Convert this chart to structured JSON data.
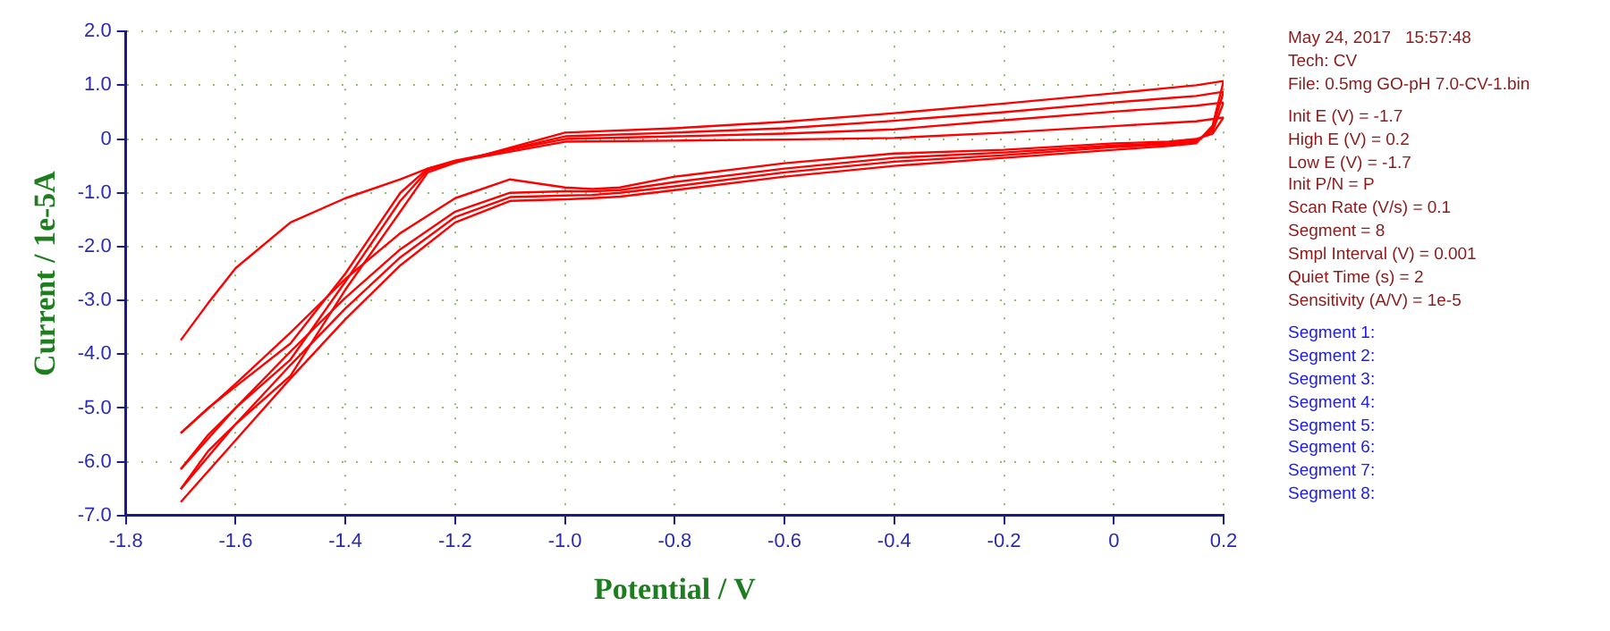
{
  "chart_data": {
    "type": "line",
    "xlabel": "Potential / V",
    "ylabel": "Current / 1e-5A",
    "xlim": [
      -1.8,
      0.2
    ],
    "ylim": [
      -7,
      2
    ],
    "xticks": [
      -1.8,
      -1.6,
      -1.4,
      -1.2,
      {
        "value": -1,
        "label": "-1.0"
      },
      -0.8,
      -0.6,
      -0.4,
      -0.2,
      0,
      0.2
    ],
    "yticks": [
      {
        "value": 2,
        "label": "2.0"
      },
      {
        "value": 1,
        "label": "1.0"
      },
      0,
      {
        "value": -1,
        "label": "-1.0"
      },
      {
        "value": -2,
        "label": "-2.0"
      },
      {
        "value": -3,
        "label": "-3.0"
      },
      {
        "value": -4,
        "label": "-4.0"
      },
      {
        "value": -5,
        "label": "-5.0"
      },
      {
        "value": -6,
        "label": "-6.0"
      },
      {
        "value": -7,
        "label": "-7.0"
      }
    ],
    "grid": true,
    "marker": "none",
    "line_style": "solid",
    "legend": false,
    "series": [
      {
        "color": "#ff0000",
        "x": [
          -1.7,
          -1.65,
          -1.6,
          -1.5,
          -1.4,
          -1.3,
          -1.25,
          -1.2,
          -1.0,
          -0.8,
          -0.6,
          -0.4,
          -0.2,
          0,
          0.1,
          0.15,
          0.2
        ],
        "values": [
          -3.74,
          -3.05,
          -2.4,
          -1.55,
          -1.1,
          -0.75,
          -0.55,
          -0.42,
          -0.05,
          -0.03,
          -0.01,
          0.02,
          0.12,
          0.24,
          0.3,
          0.33,
          0.4
        ]
      },
      {
        "color": "#ff0000",
        "x": [
          0.2,
          0.18,
          0.15,
          0.1,
          0,
          -0.2,
          -0.4,
          -0.6,
          -0.8,
          -0.9,
          -0.95,
          -1.0,
          -1.1,
          -1.2,
          -1.3,
          -1.4,
          -1.5,
          -1.6,
          -1.7
        ],
        "values": [
          0.4,
          0.1,
          0.0,
          -0.05,
          -0.08,
          -0.2,
          -0.27,
          -0.45,
          -0.7,
          -0.9,
          -0.93,
          -0.9,
          -0.75,
          -1.1,
          -1.75,
          -2.6,
          -3.6,
          -4.55,
          -5.47
        ]
      },
      {
        "color": "#ff0000",
        "x": [
          -1.7,
          -1.65,
          -1.6,
          -1.5,
          -1.4,
          -1.3,
          -1.25,
          -1.2,
          -1.0,
          -0.8,
          -0.6,
          -0.4,
          -0.2,
          0,
          0.1,
          0.15,
          0.2
        ],
        "values": [
          -5.47,
          -5.0,
          -4.6,
          -3.8,
          -2.5,
          -1.0,
          -0.55,
          -0.4,
          0.0,
          0.05,
          0.1,
          0.18,
          0.35,
          0.51,
          0.58,
          0.62,
          0.68
        ]
      },
      {
        "color": "#ff0000",
        "x": [
          0.2,
          0.18,
          0.15,
          0.1,
          0,
          -0.2,
          -0.4,
          -0.6,
          -0.8,
          -0.9,
          -0.95,
          -1.0,
          -1.1,
          -1.2,
          -1.3,
          -1.4,
          -1.5,
          -1.6,
          -1.7
        ],
        "values": [
          0.68,
          0.15,
          -0.03,
          -0.08,
          -0.12,
          -0.25,
          -0.35,
          -0.55,
          -0.8,
          -0.95,
          -0.97,
          -0.97,
          -1.0,
          -1.35,
          -2.05,
          -2.95,
          -3.95,
          -5.0,
          -6.14
        ]
      },
      {
        "color": "#ff0000",
        "x": [
          -1.7,
          -1.65,
          -1.6,
          -1.5,
          -1.4,
          -1.3,
          -1.25,
          -1.2,
          -1.0,
          -0.8,
          -0.6,
          -0.4,
          -0.2,
          0,
          0.1,
          0.15,
          0.2
        ],
        "values": [
          -6.14,
          -5.5,
          -5.0,
          -4.1,
          -2.65,
          -1.15,
          -0.58,
          -0.42,
          0.05,
          0.12,
          0.2,
          0.34,
          0.5,
          0.68,
          0.76,
          0.8,
          0.88
        ]
      },
      {
        "color": "#ff0000",
        "x": [
          0.2,
          0.18,
          0.15,
          0.1,
          0,
          -0.2,
          -0.4,
          -0.6,
          -0.8,
          -0.9,
          -0.95,
          -1.0,
          -1.1,
          -1.2,
          -1.3,
          -1.4,
          -1.5,
          -1.6,
          -1.7
        ],
        "values": [
          0.88,
          0.2,
          -0.05,
          -0.1,
          -0.15,
          -0.3,
          -0.42,
          -0.62,
          -0.88,
          -1.0,
          -1.04,
          -1.05,
          -1.08,
          -1.45,
          -2.2,
          -3.15,
          -4.2,
          -5.3,
          -6.51
        ]
      },
      {
        "color": "#ff0000",
        "x": [
          -1.7,
          -1.65,
          -1.6,
          -1.5,
          -1.4,
          -1.3,
          -1.25,
          -1.2,
          -1.0,
          -0.8,
          -0.6,
          -0.4,
          -0.2,
          0,
          0.1,
          0.15,
          0.2
        ],
        "values": [
          -6.51,
          -5.8,
          -5.3,
          -4.4,
          -2.8,
          -1.35,
          -0.62,
          -0.44,
          0.12,
          0.2,
          0.32,
          0.48,
          0.66,
          0.85,
          0.95,
          1.0,
          1.08
        ]
      },
      {
        "color": "#ff0000",
        "x": [
          0.2,
          0.18,
          0.15,
          0.1,
          0,
          -0.2,
          -0.4,
          -0.6,
          -0.8,
          -0.9,
          -0.95,
          -1.0,
          -1.1,
          -1.2,
          -1.3,
          -1.4,
          -1.5,
          -1.6,
          -1.7
        ],
        "values": [
          1.08,
          0.25,
          -0.08,
          -0.13,
          -0.2,
          -0.35,
          -0.5,
          -0.7,
          -0.95,
          -1.07,
          -1.1,
          -1.12,
          -1.15,
          -1.55,
          -2.35,
          -3.35,
          -4.45,
          -5.6,
          -6.75
        ]
      }
    ],
    "annotations": [
      "May 24, 2017   15:57:48",
      "Tech: CV",
      "File: 0.5mg GO-pH 7.0-CV-1.bin",
      "Init E (V) = -1.7",
      "High E (V) = 0.2",
      "Low E (V) = -1.7",
      "Init P/N = P",
      "Scan Rate (V/s) = 0.1",
      "Segment = 8",
      "Smpl Interval (V) = 0.001",
      "Quiet Time (s) = 2",
      "Sensitivity (A/V) = 1e-5",
      "Segment 1:",
      "Segment 2:",
      "Segment 3:",
      "Segment 4:",
      "Segment 5:",
      "Segment 6:",
      "Segment 7:",
      "Segment 8:"
    ]
  }
}
